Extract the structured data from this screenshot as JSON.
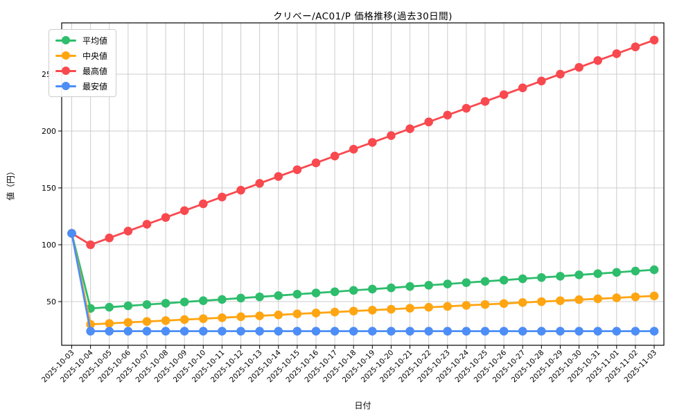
{
  "chart_data": {
    "type": "line",
    "title": "クリベー/AC01/P 価格推移(過去30日間)",
    "xlabel": "日付",
    "ylabel": "値（円）",
    "grid": true,
    "grid_color": "#cccccc",
    "legend_position": "upper left",
    "yticks": [
      50,
      100,
      150,
      200,
      250
    ],
    "ylim": [
      11.6,
      295.1
    ],
    "x": [
      "2025-10-03",
      "2025-10-04",
      "2025-10-05",
      "2025-10-06",
      "2025-10-07",
      "2025-10-08",
      "2025-10-09",
      "2025-10-10",
      "2025-10-11",
      "2025-10-12",
      "2025-10-13",
      "2025-10-14",
      "2025-10-15",
      "2025-10-16",
      "2025-10-17",
      "2025-10-18",
      "2025-10-19",
      "2025-10-20",
      "2025-10-21",
      "2025-10-22",
      "2025-10-23",
      "2025-10-24",
      "2025-10-25",
      "2025-10-26",
      "2025-10-27",
      "2025-10-28",
      "2025-10-29",
      "2025-10-30",
      "2025-10-31",
      "2025-11-01",
      "2025-11-02",
      "2025-11-03"
    ],
    "series": [
      {
        "key": "average",
        "name": "平均値",
        "color": "#2ebd6c",
        "values": [
          110,
          44,
          45.1,
          46.3,
          47.4,
          48.5,
          49.7,
          50.8,
          51.9,
          53.1,
          54.2,
          55.3,
          56.5,
          57.6,
          58.7,
          59.9,
          61,
          62.1,
          63.3,
          64.4,
          65.5,
          66.7,
          67.8,
          68.9,
          70.1,
          71.2,
          72.3,
          73.5,
          74.6,
          75.7,
          76.9,
          78
        ]
      },
      {
        "key": "median",
        "name": "中央値",
        "color": "#ffa512",
        "values": [
          110,
          30,
          30.8,
          31.7,
          32.5,
          33.3,
          34.2,
          35,
          35.8,
          36.7,
          37.5,
          38.3,
          39.2,
          40,
          40.8,
          41.7,
          42.5,
          43.3,
          44.2,
          45,
          45.8,
          46.7,
          47.5,
          48.3,
          49.2,
          50,
          50.8,
          51.7,
          52.5,
          53.3,
          54.2,
          55
        ]
      },
      {
        "key": "max",
        "name": "最高値",
        "color": "#f8494f",
        "values": [
          110,
          100,
          106,
          112,
          118,
          124,
          130,
          136,
          142,
          148,
          154,
          160,
          166,
          172,
          178,
          184,
          190,
          196,
          202,
          208,
          214,
          220,
          226,
          232,
          238,
          244,
          250,
          256,
          262,
          268,
          274,
          280
        ]
      },
      {
        "key": "min",
        "name": "最安値",
        "color": "#4d8df6",
        "values": [
          110,
          24,
          24,
          24,
          24,
          24,
          24,
          24,
          24,
          24,
          24,
          24,
          24,
          24,
          24,
          24,
          24,
          24,
          24,
          24,
          24,
          24,
          24,
          24,
          24,
          24,
          24,
          24,
          24,
          24,
          24,
          24
        ]
      }
    ]
  }
}
